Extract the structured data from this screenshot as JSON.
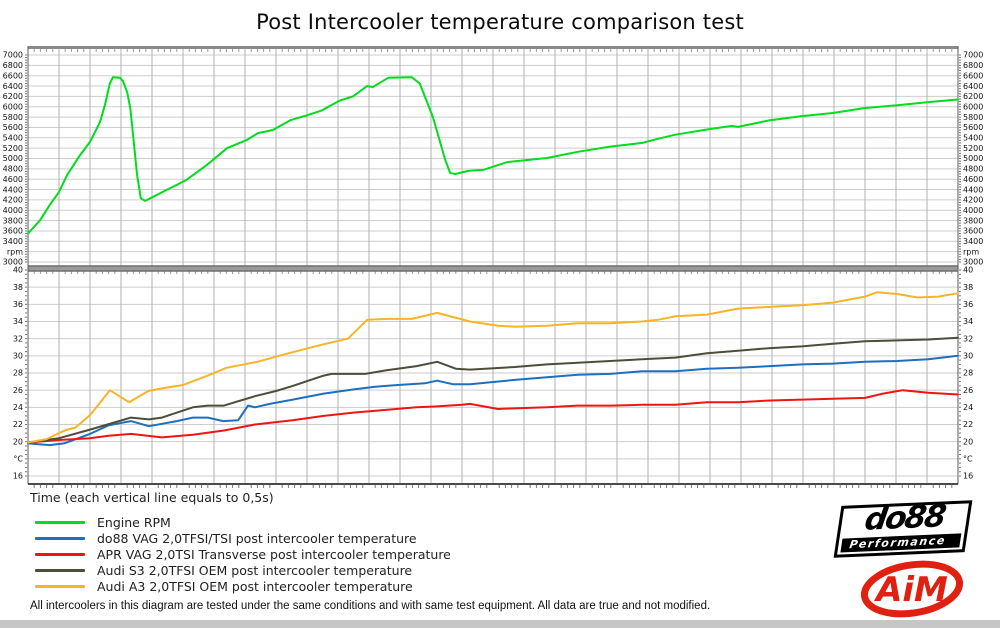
{
  "title": "Post Intercooler temperature comparison test",
  "xlabel": "Time (each vertical line equals to 0,5s)",
  "note": "All intercoolers in this diagram are tested under the same conditions and with same test equipment. All data are true and not modified.",
  "axes": {
    "rpm": {
      "unit": "rpm",
      "min": 3000,
      "max": 7000,
      "tick_step": 200,
      "tick_labels": [
        "7000",
        "6800",
        "6600",
        "6400",
        "6200",
        "6000",
        "5800",
        "5600",
        "5400",
        "5200",
        "5000",
        "4800",
        "4600",
        "4400",
        "4200",
        "4000",
        "3800",
        "3600",
        "3400",
        "rpm",
        "3000"
      ]
    },
    "temp": {
      "unit": "°C",
      "min": 16,
      "max": 40,
      "tick_step": 2,
      "tick_labels": [
        "40",
        "38",
        "36",
        "34",
        "32",
        "30",
        "28",
        "26",
        "24",
        "22",
        "20",
        "°C",
        "16"
      ]
    }
  },
  "chart_data": {
    "type": "line",
    "title": "Post Intercooler temperature comparison test",
    "x_unit": "seconds",
    "x_range": [
      0,
      15
    ],
    "seconds_per_vertical_division": 0.5,
    "grid": true,
    "legend_position": "bottom-left",
    "series": [
      {
        "name": "Engine RPM",
        "color": "#00dd1c",
        "axis": "rpm",
        "points": [
          [
            0,
            3550
          ],
          [
            0.19,
            3800
          ],
          [
            0.35,
            4100
          ],
          [
            0.5,
            4350
          ],
          [
            0.63,
            4680
          ],
          [
            0.84,
            5065
          ],
          [
            1.0,
            5320
          ],
          [
            1.16,
            5700
          ],
          [
            1.24,
            6030
          ],
          [
            1.32,
            6450
          ],
          [
            1.37,
            6570
          ],
          [
            1.48,
            6560
          ],
          [
            1.53,
            6500
          ],
          [
            1.6,
            6280
          ],
          [
            1.65,
            5970
          ],
          [
            1.7,
            5390
          ],
          [
            1.76,
            4680
          ],
          [
            1.82,
            4230
          ],
          [
            1.89,
            4180
          ],
          [
            2.02,
            4260
          ],
          [
            2.18,
            4360
          ],
          [
            2.4,
            4490
          ],
          [
            2.56,
            4590
          ],
          [
            2.89,
            4880
          ],
          [
            3.21,
            5200
          ],
          [
            3.53,
            5360
          ],
          [
            3.71,
            5490
          ],
          [
            3.95,
            5550
          ],
          [
            4.23,
            5740
          ],
          [
            4.5,
            5835
          ],
          [
            4.74,
            5930
          ],
          [
            5.03,
            6120
          ],
          [
            5.24,
            6200
          ],
          [
            5.47,
            6400
          ],
          [
            5.56,
            6380
          ],
          [
            5.81,
            6560
          ],
          [
            6.19,
            6570
          ],
          [
            6.32,
            6450
          ],
          [
            6.53,
            5800
          ],
          [
            6.73,
            4970
          ],
          [
            6.81,
            4720
          ],
          [
            6.89,
            4700
          ],
          [
            7.1,
            4760
          ],
          [
            7.34,
            4780
          ],
          [
            7.73,
            4930
          ],
          [
            8.37,
            5010
          ],
          [
            8.87,
            5130
          ],
          [
            9.39,
            5230
          ],
          [
            9.9,
            5300
          ],
          [
            10.16,
            5380
          ],
          [
            10.44,
            5460
          ],
          [
            10.95,
            5560
          ],
          [
            11.35,
            5630
          ],
          [
            11.45,
            5610
          ],
          [
            11.97,
            5740
          ],
          [
            12.48,
            5820
          ],
          [
            12.98,
            5880
          ],
          [
            13.5,
            5975
          ],
          [
            14.02,
            6030
          ],
          [
            14.52,
            6090
          ],
          [
            15,
            6140
          ]
        ]
      },
      {
        "name": "do88 VAG 2,0TFSI/TSI post intercooler temperature",
        "color": "#1e6fc0",
        "axis": "temp",
        "points": [
          [
            0,
            19.8
          ],
          [
            0.35,
            19.6
          ],
          [
            0.58,
            19.8
          ],
          [
            1.0,
            20.9
          ],
          [
            1.3,
            21.9
          ],
          [
            1.66,
            22.4
          ],
          [
            1.95,
            21.8
          ],
          [
            2.4,
            22.4
          ],
          [
            2.66,
            22.8
          ],
          [
            2.9,
            22.8
          ],
          [
            3.15,
            22.4
          ],
          [
            3.39,
            22.5
          ],
          [
            3.55,
            24.2
          ],
          [
            3.66,
            24.0
          ],
          [
            3.9,
            24.4
          ],
          [
            4.27,
            24.9
          ],
          [
            4.77,
            25.6
          ],
          [
            5.27,
            26.1
          ],
          [
            5.6,
            26.4
          ],
          [
            5.97,
            26.6
          ],
          [
            6.4,
            26.8
          ],
          [
            6.6,
            27.1
          ],
          [
            6.85,
            26.7
          ],
          [
            7.13,
            26.7
          ],
          [
            7.85,
            27.2
          ],
          [
            8.37,
            27.5
          ],
          [
            8.87,
            27.8
          ],
          [
            9.39,
            27.9
          ],
          [
            9.9,
            28.2
          ],
          [
            10.44,
            28.2
          ],
          [
            10.95,
            28.5
          ],
          [
            11.45,
            28.6
          ],
          [
            11.97,
            28.8
          ],
          [
            12.48,
            29.0
          ],
          [
            12.98,
            29.1
          ],
          [
            13.5,
            29.3
          ],
          [
            14.02,
            29.4
          ],
          [
            14.52,
            29.6
          ],
          [
            15,
            30.0
          ]
        ]
      },
      {
        "name": "APR VAG 2,0TSI Transverse post intercooler temperature",
        "color": "#ee1515",
        "axis": "temp",
        "points": [
          [
            0,
            19.9
          ],
          [
            0.5,
            20.2
          ],
          [
            1.0,
            20.4
          ],
          [
            1.3,
            20.7
          ],
          [
            1.66,
            20.9
          ],
          [
            2.16,
            20.5
          ],
          [
            2.66,
            20.8
          ],
          [
            3.16,
            21.3
          ],
          [
            3.66,
            22.0
          ],
          [
            4.27,
            22.5
          ],
          [
            4.77,
            23.0
          ],
          [
            5.27,
            23.4
          ],
          [
            5.77,
            23.7
          ],
          [
            6.27,
            24.0
          ],
          [
            6.56,
            24.1
          ],
          [
            7.0,
            24.3
          ],
          [
            7.13,
            24.4
          ],
          [
            7.58,
            23.8
          ],
          [
            7.9,
            23.9
          ],
          [
            8.37,
            24.0
          ],
          [
            8.87,
            24.2
          ],
          [
            9.39,
            24.2
          ],
          [
            9.9,
            24.3
          ],
          [
            10.44,
            24.3
          ],
          [
            10.95,
            24.6
          ],
          [
            11.45,
            24.6
          ],
          [
            11.97,
            24.8
          ],
          [
            12.48,
            24.9
          ],
          [
            12.98,
            25.0
          ],
          [
            13.5,
            25.1
          ],
          [
            13.79,
            25.6
          ],
          [
            14.11,
            26.0
          ],
          [
            14.52,
            25.7
          ],
          [
            15,
            25.5
          ]
        ]
      },
      {
        "name": "Audi S3 2,0TFSI OEM post intercooler temperature",
        "color": "#4d4d3a",
        "axis": "temp",
        "points": [
          [
            0,
            19.9
          ],
          [
            0.5,
            20.4
          ],
          [
            1.0,
            21.4
          ],
          [
            1.66,
            22.8
          ],
          [
            1.95,
            22.6
          ],
          [
            2.16,
            22.8
          ],
          [
            2.66,
            24.0
          ],
          [
            2.9,
            24.2
          ],
          [
            3.16,
            24.2
          ],
          [
            3.66,
            25.3
          ],
          [
            4.0,
            25.9
          ],
          [
            4.27,
            26.5
          ],
          [
            4.77,
            27.7
          ],
          [
            4.9,
            27.9
          ],
          [
            5.44,
            27.9
          ],
          [
            5.77,
            28.3
          ],
          [
            6.27,
            28.8
          ],
          [
            6.6,
            29.3
          ],
          [
            6.9,
            28.5
          ],
          [
            7.13,
            28.4
          ],
          [
            7.85,
            28.7
          ],
          [
            8.37,
            29.0
          ],
          [
            8.87,
            29.2
          ],
          [
            9.39,
            29.4
          ],
          [
            9.9,
            29.6
          ],
          [
            10.44,
            29.8
          ],
          [
            10.95,
            30.3
          ],
          [
            11.45,
            30.6
          ],
          [
            11.97,
            30.9
          ],
          [
            12.48,
            31.1
          ],
          [
            12.98,
            31.4
          ],
          [
            13.5,
            31.7
          ],
          [
            14.02,
            31.8
          ],
          [
            14.52,
            31.9
          ],
          [
            15,
            32.1
          ]
        ]
      },
      {
        "name": "Audi A3 2,0TFSI OEM post intercooler temperature",
        "color": "#f7b427",
        "axis": "temp",
        "points": [
          [
            0,
            19.9
          ],
          [
            0.3,
            20.3
          ],
          [
            0.5,
            21.0
          ],
          [
            0.63,
            21.4
          ],
          [
            0.76,
            21.6
          ],
          [
            1.0,
            23.1
          ],
          [
            1.19,
            24.8
          ],
          [
            1.32,
            26.0
          ],
          [
            1.63,
            24.6
          ],
          [
            1.94,
            25.9
          ],
          [
            2.16,
            26.2
          ],
          [
            2.5,
            26.6
          ],
          [
            2.9,
            27.7
          ],
          [
            3.2,
            28.6
          ],
          [
            3.7,
            29.3
          ],
          [
            4.2,
            30.3
          ],
          [
            4.74,
            31.3
          ],
          [
            5.16,
            32.0
          ],
          [
            5.47,
            34.2
          ],
          [
            5.81,
            34.3
          ],
          [
            6.19,
            34.3
          ],
          [
            6.6,
            35.0
          ],
          [
            7.13,
            34.0
          ],
          [
            7.58,
            33.5
          ],
          [
            7.85,
            33.4
          ],
          [
            8.37,
            33.5
          ],
          [
            8.87,
            33.8
          ],
          [
            9.39,
            33.8
          ],
          [
            9.9,
            34.0
          ],
          [
            10.16,
            34.2
          ],
          [
            10.44,
            34.6
          ],
          [
            10.95,
            34.8
          ],
          [
            11.45,
            35.5
          ],
          [
            11.97,
            35.7
          ],
          [
            12.48,
            35.9
          ],
          [
            12.98,
            36.2
          ],
          [
            13.5,
            36.9
          ],
          [
            13.69,
            37.4
          ],
          [
            14.02,
            37.2
          ],
          [
            14.35,
            36.8
          ],
          [
            14.68,
            36.9
          ],
          [
            15,
            37.3
          ]
        ]
      }
    ],
    "colors": {
      "grid_minor": "#cdcdcd",
      "grid_major_vertical": "#b2b2b2",
      "panel_border": "#8a8a8a",
      "axis": "#5a5a5a",
      "tick_text": "#111111"
    }
  },
  "logos": {
    "do88": {
      "text": "do88",
      "sub": "Performance"
    },
    "aim": {
      "text": "AiM",
      "color": "#e02010"
    }
  }
}
